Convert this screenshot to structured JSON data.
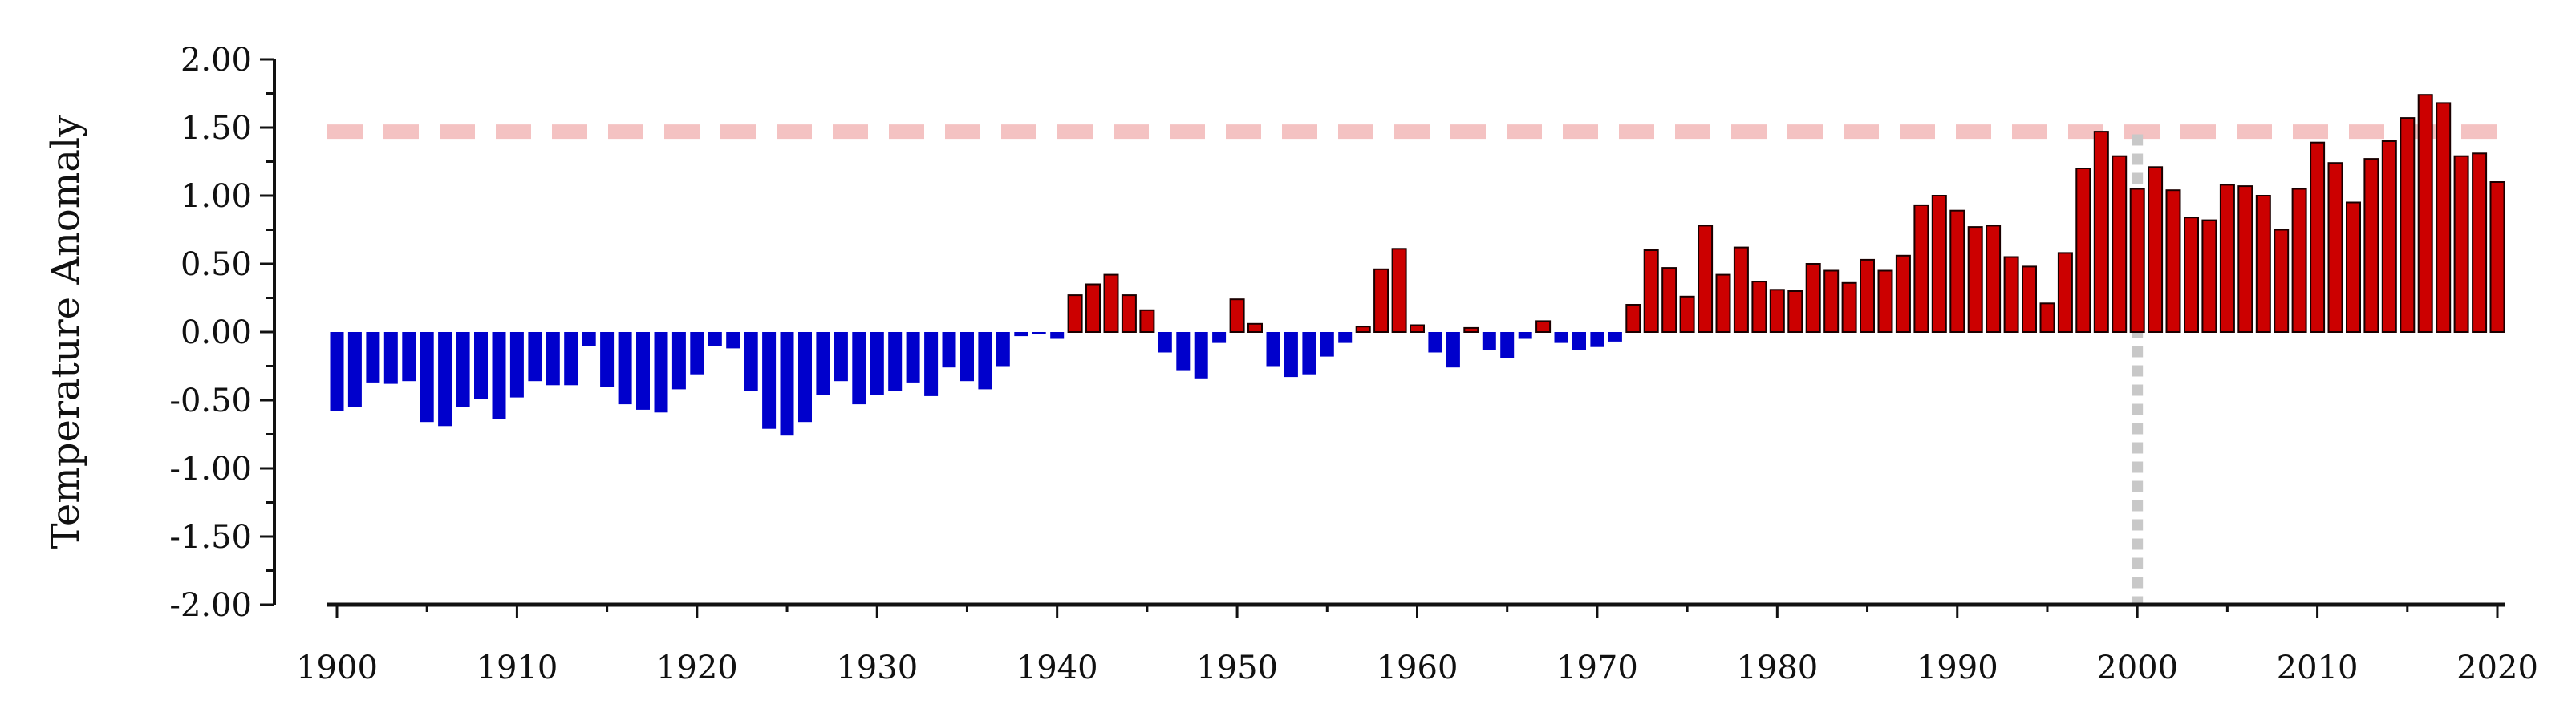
{
  "chart_data": {
    "type": "bar",
    "title": "",
    "xlabel": "",
    "ylabel": "Temperature Anomaly",
    "ylim": [
      -2.0,
      2.0
    ],
    "yticks": [
      "2.00",
      "1.50",
      "1.00",
      "0.50",
      "0.00",
      "-0.50",
      "-1.00",
      "-1.50",
      "-2.00"
    ],
    "ytick_values": [
      2.0,
      1.5,
      1.0,
      0.5,
      0.0,
      -0.5,
      -1.0,
      -1.5,
      -2.0
    ],
    "xlim": [
      1899.5,
      2020.5
    ],
    "xticks": [
      "1900",
      "1910",
      "1920",
      "1930",
      "1940",
      "1950",
      "1960",
      "1970",
      "1980",
      "1990",
      "2000",
      "2010",
      "2020"
    ],
    "xtick_values": [
      1900,
      1910,
      1920,
      1930,
      1940,
      1950,
      1960,
      1970,
      1980,
      1990,
      2000,
      2010,
      2020
    ],
    "grid": false,
    "colors": {
      "positive": "#cc0000",
      "positive_edge": "#1a0000",
      "negative": "#0000cc",
      "reference_line": "#f4c2c2",
      "marker_line": "#c8c8c8",
      "axis": "#111111"
    },
    "reference_lines": [
      {
        "axis": "y",
        "value": 1.47,
        "style": "dashed"
      },
      {
        "axis": "x",
        "value": 2000,
        "style": "dotted",
        "from": -2.0,
        "to": 1.45
      }
    ],
    "x": [
      1900,
      1901,
      1902,
      1903,
      1904,
      1905,
      1906,
      1907,
      1908,
      1909,
      1910,
      1911,
      1912,
      1913,
      1914,
      1915,
      1916,
      1917,
      1918,
      1919,
      1920,
      1921,
      1922,
      1923,
      1924,
      1925,
      1926,
      1927,
      1928,
      1929,
      1930,
      1931,
      1932,
      1933,
      1934,
      1935,
      1936,
      1937,
      1938,
      1939,
      1940,
      1941,
      1942,
      1943,
      1944,
      1945,
      1946,
      1947,
      1948,
      1949,
      1950,
      1951,
      1952,
      1953,
      1954,
      1955,
      1956,
      1957,
      1958,
      1959,
      1960,
      1961,
      1962,
      1963,
      1964,
      1965,
      1966,
      1967,
      1968,
      1969,
      1970,
      1971,
      1972,
      1973,
      1974,
      1975,
      1976,
      1977,
      1978,
      1979,
      1980,
      1981,
      1982,
      1983,
      1984,
      1985,
      1986,
      1987,
      1988,
      1989,
      1990,
      1991,
      1992,
      1993,
      1994,
      1995,
      1996,
      1997,
      1998,
      1999,
      2000,
      2001,
      2002,
      2003,
      2004,
      2005,
      2006,
      2007,
      2008,
      2009,
      2010,
      2011,
      2012,
      2013,
      2014,
      2015,
      2016,
      2017,
      2018,
      2019,
      2020
    ],
    "values": [
      -0.58,
      -0.55,
      -0.37,
      -0.38,
      -0.36,
      -0.66,
      -0.69,
      -0.55,
      -0.49,
      -0.64,
      -0.48,
      -0.36,
      -0.39,
      -0.39,
      -0.1,
      -0.4,
      -0.53,
      -0.57,
      -0.59,
      -0.42,
      -0.31,
      -0.1,
      -0.12,
      -0.43,
      -0.71,
      -0.76,
      -0.66,
      -0.46,
      -0.36,
      -0.53,
      -0.46,
      -0.43,
      -0.37,
      -0.47,
      -0.26,
      -0.36,
      -0.42,
      -0.25,
      -0.03,
      -0.01,
      -0.05,
      0.27,
      0.35,
      0.42,
      0.27,
      0.16,
      -0.15,
      -0.28,
      -0.34,
      -0.08,
      0.24,
      0.06,
      -0.25,
      -0.33,
      -0.31,
      -0.18,
      -0.08,
      0.04,
      0.46,
      0.61,
      0.05,
      -0.15,
      -0.26,
      0.03,
      -0.13,
      -0.19,
      -0.05,
      0.08,
      -0.08,
      -0.13,
      -0.11,
      -0.07,
      0.2,
      0.6,
      0.47,
      0.26,
      0.78,
      0.42,
      0.62,
      0.37,
      0.31,
      0.3,
      0.5,
      0.45,
      0.36,
      0.53,
      0.45,
      0.56,
      0.93,
      1.0,
      0.89,
      0.77,
      0.78,
      0.55,
      0.48,
      0.21,
      0.58,
      1.2,
      1.47,
      1.29,
      1.05,
      1.21,
      1.04,
      0.84,
      0.82,
      1.08,
      1.07,
      1.0,
      0.75,
      1.05,
      1.39,
      1.24,
      0.95,
      1.27,
      1.4,
      1.57,
      1.74,
      1.68,
      1.29,
      1.31,
      1.1
    ]
  }
}
